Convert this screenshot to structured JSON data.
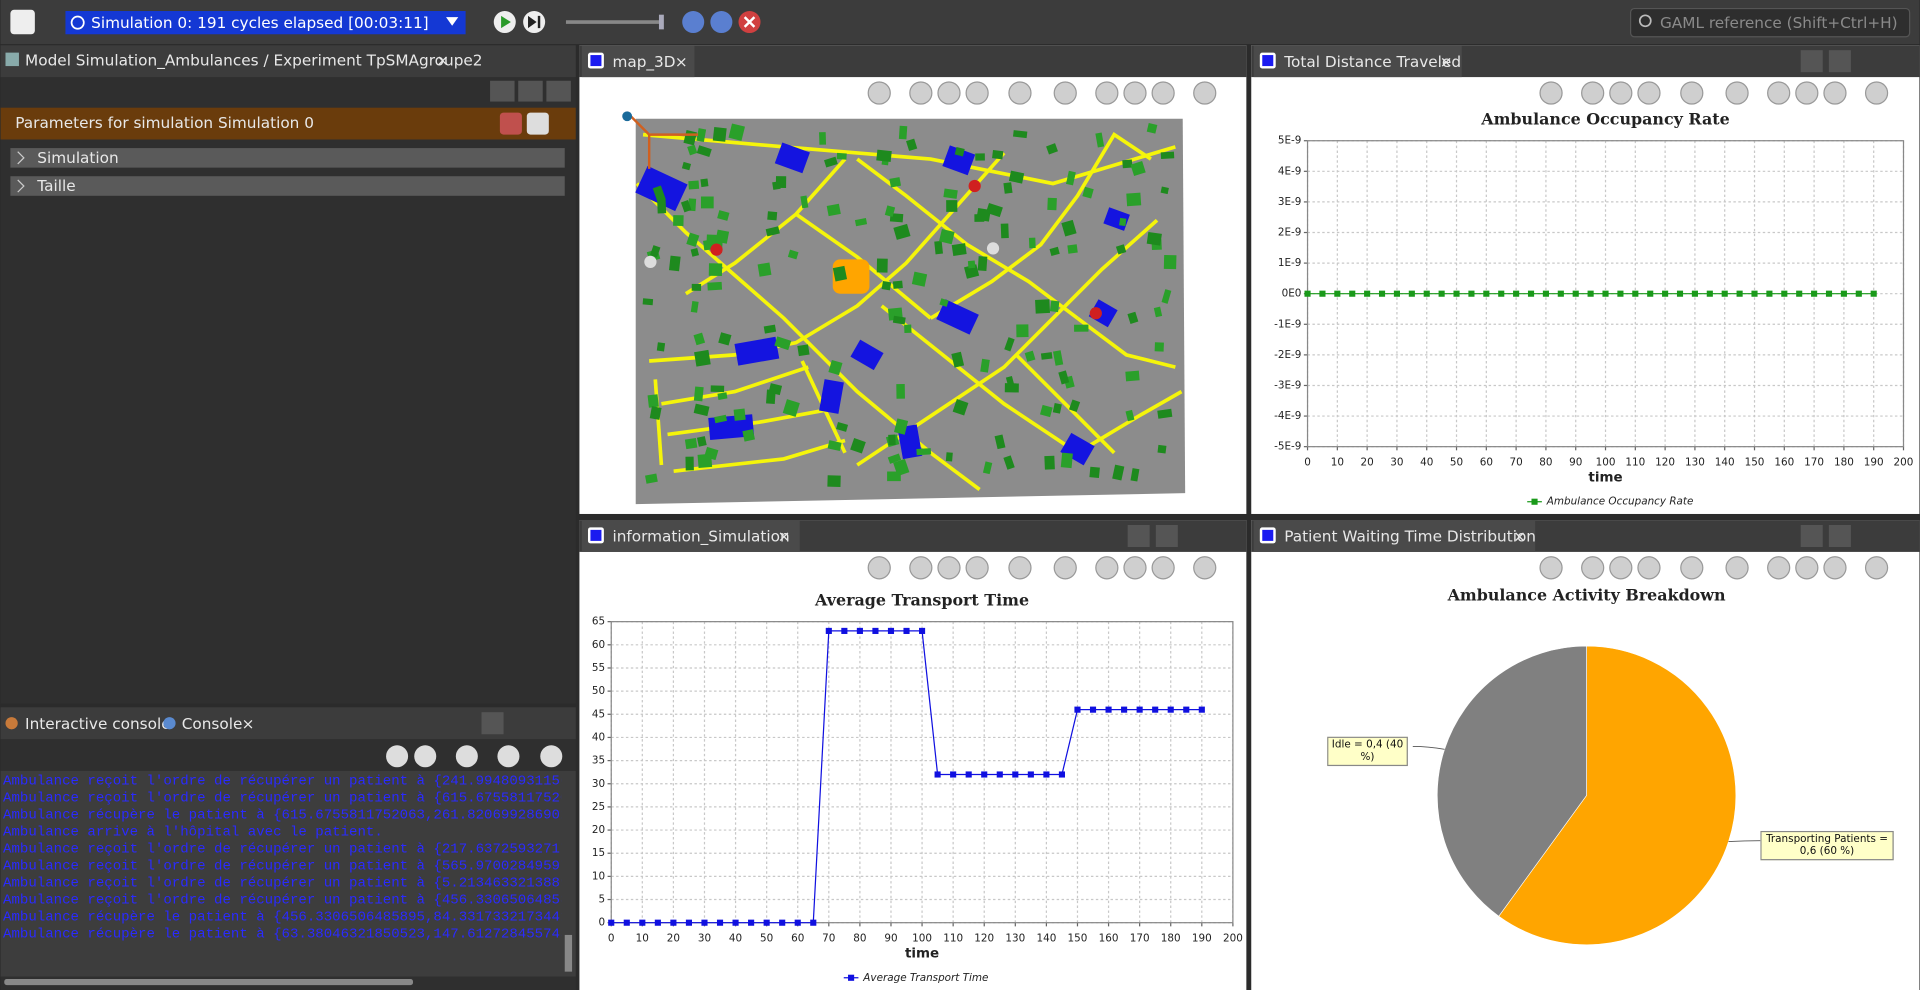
{
  "toolbar": {
    "simulation_status": "Simulation 0: 191 cycles elapsed [00:03:11]",
    "search_placeholder": "GAML reference (Shift+Ctrl+H)"
  },
  "parameters_view": {
    "tab": "Model Simulation_Ambulances / Experiment TpSMAgroupe2",
    "header": "Parameters for simulation Simulation 0",
    "sections": [
      "Simulation",
      "Taille"
    ]
  },
  "console_view": {
    "tabs": [
      "Interactive console",
      "Console"
    ],
    "lines": [
      "Ambulance reçoit l'ordre de récupérer un patient à {241.9948093115670",
      "Ambulance reçoit l'ordre de récupérer un patient à {615.6755811752063,",
      "Ambulance récupère le patient à {615.6755811752063,261.820699286902,0.",
      "Ambulance arrive à l'hôpital avec le patient.",
      "Ambulance reçoit l'ordre de récupérer un patient à {217.63725932717927",
      "Ambulance reçoit l'ordre de récupérer un patient à {565.9700284959771,",
      "Ambulance reçoit l'ordre de récupérer un patient à {5.213463321388941,",
      "Ambulance reçoit l'ordre de récupérer un patient à {456.3306506485895,",
      "Ambulance récupère le patient à {456.3306506485895,84.33173321734418,0",
      "Ambulance récupère le patient à {63.38046321850523,147.61272845574376,"
    ]
  },
  "map_view": {
    "tab": "map_3D"
  },
  "chart_data": [
    {
      "type": "line",
      "tab": "Total Distance Traveled",
      "title": "Ambulance Occupancy Rate",
      "x_label": "time",
      "grid": true,
      "legend": "bottom",
      "x": [
        0,
        5,
        10,
        15,
        20,
        25,
        30,
        35,
        40,
        45,
        50,
        55,
        60,
        65,
        70,
        75,
        80,
        85,
        90,
        95,
        100,
        105,
        110,
        115,
        120,
        125,
        130,
        135,
        140,
        145,
        150,
        155,
        160,
        165,
        170,
        175,
        180,
        185,
        190
      ],
      "series": [
        {
          "name": "Ambulance Occupancy Rate",
          "color": "#1a9a1a",
          "values": [
            0,
            0,
            0,
            0,
            0,
            0,
            0,
            0,
            0,
            0,
            0,
            0,
            0,
            0,
            0,
            0,
            0,
            0,
            0,
            0,
            0,
            0,
            0,
            0,
            0,
            0,
            0,
            0,
            0,
            0,
            0,
            0,
            0,
            0,
            0,
            0,
            0,
            0,
            0
          ]
        }
      ],
      "xlim": [
        0,
        200
      ],
      "xticks": [
        0,
        10,
        20,
        30,
        40,
        50,
        60,
        70,
        80,
        90,
        100,
        110,
        120,
        130,
        140,
        150,
        160,
        170,
        180,
        190,
        200
      ],
      "ylim": [
        -5e-09,
        5e-09
      ],
      "yticks": [
        {
          "value": 5e-09,
          "label": "5E-9"
        },
        {
          "value": 4e-09,
          "label": "4E-9"
        },
        {
          "value": 3e-09,
          "label": "3E-9"
        },
        {
          "value": 2e-09,
          "label": "2E-9"
        },
        {
          "value": 1e-09,
          "label": "1E-9"
        },
        {
          "value": 0,
          "label": "0E0"
        },
        {
          "value": -1e-09,
          "label": "-1E-9"
        },
        {
          "value": -2e-09,
          "label": "-2E-9"
        },
        {
          "value": -3e-09,
          "label": "-3E-9"
        },
        {
          "value": -4e-09,
          "label": "-4E-9"
        },
        {
          "value": -5e-09,
          "label": "-5E-9"
        }
      ]
    },
    {
      "type": "line",
      "tab": "information_Simulation",
      "title": "Average Transport Time",
      "x_label": "time",
      "grid": true,
      "legend": "bottom",
      "x": [
        0,
        5,
        10,
        15,
        20,
        25,
        30,
        35,
        40,
        45,
        50,
        55,
        60,
        65,
        70,
        75,
        80,
        85,
        90,
        95,
        100,
        105,
        110,
        115,
        120,
        125,
        130,
        135,
        140,
        145,
        150,
        155,
        160,
        165,
        170,
        175,
        180,
        185,
        190
      ],
      "series": [
        {
          "name": "Average Transport Time",
          "color": "#1010e0",
          "values": [
            0,
            0,
            0,
            0,
            0,
            0,
            0,
            0,
            0,
            0,
            0,
            0,
            0,
            0,
            63,
            63,
            63,
            63,
            63,
            63,
            63,
            32,
            32,
            32,
            32,
            32,
            32,
            32,
            32,
            32,
            46,
            46,
            46,
            46,
            46,
            46,
            46,
            46,
            46
          ]
        }
      ],
      "xlim": [
        0,
        200
      ],
      "xticks": [
        0,
        10,
        20,
        30,
        40,
        50,
        60,
        70,
        80,
        90,
        100,
        110,
        120,
        130,
        140,
        150,
        160,
        170,
        180,
        190,
        200
      ],
      "ylim": [
        0,
        65
      ],
      "yticks": [
        0,
        5,
        10,
        15,
        20,
        25,
        30,
        35,
        40,
        45,
        50,
        55,
        60,
        65
      ]
    },
    {
      "type": "pie",
      "tab": "Patient Waiting Time Distribution",
      "title": "Ambulance Activity Breakdown",
      "categories": [
        "Transporting Patients",
        "Idle"
      ],
      "values": [
        0.6,
        0.4
      ],
      "colors": [
        "#ffa500",
        "#808080"
      ],
      "value_labels": [
        "Transporting Patients = 0,6 (60 %)",
        "Idle = 0,4 (40 %)"
      ]
    }
  ]
}
